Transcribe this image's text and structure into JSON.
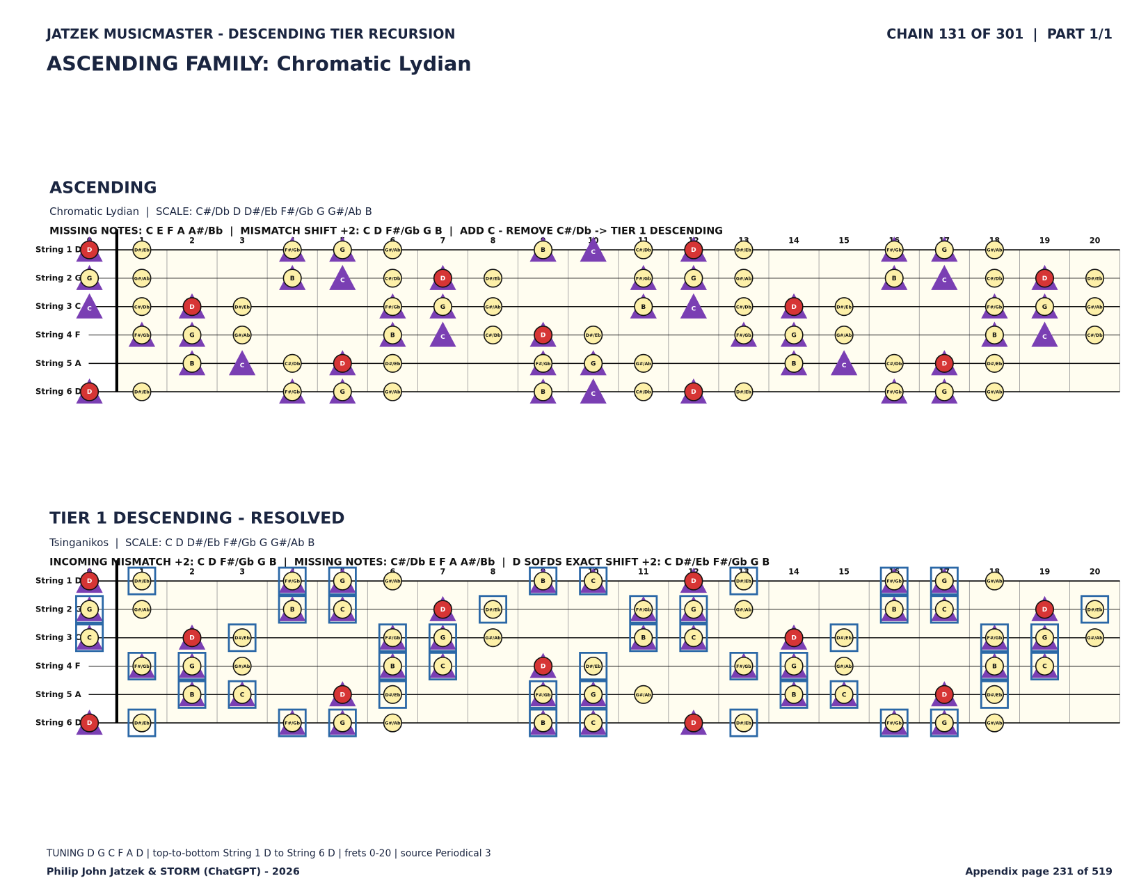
{
  "header": {
    "left": "JATZEK MUSICMASTER - DESCENDING TIER RECURSION",
    "right": "CHAIN 131 OF 301  |  PART 1/1",
    "title": "ASCENDING FAMILY: Chromatic Lydian"
  },
  "colors": {
    "note": "#fdf0a8",
    "highlight_note": "D",
    "highlight": "#d63535",
    "triangle": "#7a3fb3",
    "box": "#2a67a6",
    "board": "#fffdf0"
  },
  "frets": [
    0,
    1,
    2,
    3,
    4,
    5,
    6,
    7,
    8,
    9,
    10,
    11,
    12,
    13,
    14,
    15,
    16,
    17,
    18,
    19,
    20
  ],
  "strings": [
    "String 1 D",
    "String 2 G",
    "String 3 C",
    "String 4 F",
    "String 5 A",
    "String 6 D"
  ],
  "diagrams": [
    {
      "heading": "ASCENDING",
      "subtitle": "Chromatic Lydian  |  SCALE: C#/Db D D#/Eb F#/Gb G G#/Ab B",
      "info": "MISSING NOTES: C E F A A#/Bb  |  MISMATCH SHIFT +2: C D F#/Gb G B  |  ADD C - REMOVE C#/Db -> TIER 1 DESCENDING",
      "notes": [
        [
          [
            0,
            "D",
            "triangle"
          ],
          [
            1,
            "D#/Eb"
          ],
          [
            4,
            "F#/Gb",
            "triangle"
          ],
          [
            5,
            "G",
            "triangle"
          ],
          [
            6,
            "G#/Ab"
          ],
          [
            9,
            "B",
            "triangle"
          ],
          [
            10,
            "C",
            "triangle-only"
          ],
          [
            11,
            "C#/Db"
          ],
          [
            12,
            "D",
            "triangle"
          ],
          [
            13,
            "D#/Eb"
          ],
          [
            16,
            "F#/Gb",
            "triangle"
          ],
          [
            17,
            "G",
            "triangle"
          ],
          [
            18,
            "G#/Ab"
          ]
        ],
        [
          [
            0,
            "G",
            "triangle"
          ],
          [
            1,
            "G#/Ab"
          ],
          [
            4,
            "B",
            "triangle"
          ],
          [
            5,
            "C",
            "triangle-only"
          ],
          [
            6,
            "C#/Db"
          ],
          [
            7,
            "D",
            "triangle"
          ],
          [
            8,
            "D#/Eb"
          ],
          [
            11,
            "F#/Gb",
            "triangle"
          ],
          [
            12,
            "G",
            "triangle"
          ],
          [
            13,
            "G#/Ab"
          ],
          [
            16,
            "B",
            "triangle"
          ],
          [
            17,
            "C",
            "triangle-only"
          ],
          [
            18,
            "C#/Db"
          ],
          [
            19,
            "D",
            "triangle"
          ],
          [
            20,
            "D#/Eb"
          ]
        ],
        [
          [
            0,
            "C",
            "triangle-only"
          ],
          [
            1,
            "C#/Db"
          ],
          [
            2,
            "D",
            "triangle"
          ],
          [
            3,
            "D#/Eb"
          ],
          [
            6,
            "F#/Gb",
            "triangle"
          ],
          [
            7,
            "G",
            "triangle"
          ],
          [
            8,
            "G#/Ab"
          ],
          [
            11,
            "B",
            "triangle"
          ],
          [
            12,
            "C",
            "triangle-only"
          ],
          [
            13,
            "C#/Db"
          ],
          [
            14,
            "D",
            "triangle"
          ],
          [
            15,
            "D#/Eb"
          ],
          [
            18,
            "F#/Gb",
            "triangle"
          ],
          [
            19,
            "G",
            "triangle"
          ],
          [
            20,
            "G#/Ab"
          ]
        ],
        [
          [
            1,
            "F#/Gb",
            "triangle"
          ],
          [
            2,
            "G",
            "triangle"
          ],
          [
            3,
            "G#/Ab"
          ],
          [
            6,
            "B",
            "triangle"
          ],
          [
            7,
            "C",
            "triangle-only"
          ],
          [
            8,
            "C#/Db"
          ],
          [
            9,
            "D",
            "triangle"
          ],
          [
            10,
            "D#/Eb"
          ],
          [
            13,
            "F#/Gb",
            "triangle"
          ],
          [
            14,
            "G",
            "triangle"
          ],
          [
            15,
            "G#/Ab"
          ],
          [
            18,
            "B",
            "triangle"
          ],
          [
            19,
            "C",
            "triangle-only"
          ],
          [
            20,
            "C#/Db"
          ]
        ],
        [
          [
            2,
            "B",
            "triangle"
          ],
          [
            3,
            "C",
            "triangle-only"
          ],
          [
            4,
            "C#/Db"
          ],
          [
            5,
            "D",
            "triangle"
          ],
          [
            6,
            "D#/Eb"
          ],
          [
            9,
            "F#/Gb",
            "triangle"
          ],
          [
            10,
            "G",
            "triangle"
          ],
          [
            11,
            "G#/Ab"
          ],
          [
            14,
            "B",
            "triangle"
          ],
          [
            15,
            "C",
            "triangle-only"
          ],
          [
            16,
            "C#/Db"
          ],
          [
            17,
            "D",
            "triangle"
          ],
          [
            18,
            "D#/Eb"
          ]
        ],
        [
          [
            0,
            "D",
            "triangle"
          ],
          [
            1,
            "D#/Eb"
          ],
          [
            4,
            "F#/Gb",
            "triangle"
          ],
          [
            5,
            "G",
            "triangle"
          ],
          [
            6,
            "G#/Ab"
          ],
          [
            9,
            "B",
            "triangle"
          ],
          [
            10,
            "C",
            "triangle-only"
          ],
          [
            11,
            "C#/Db"
          ],
          [
            12,
            "D",
            "triangle"
          ],
          [
            13,
            "D#/Eb"
          ],
          [
            16,
            "F#/Gb",
            "triangle"
          ],
          [
            17,
            "G",
            "triangle"
          ],
          [
            18,
            "G#/Ab"
          ]
        ]
      ]
    },
    {
      "heading": "TIER 1 DESCENDING - RESOLVED",
      "subtitle": "Tsinganikos  |  SCALE: C D D#/Eb F#/Gb G G#/Ab B",
      "info": "INCOMING MISMATCH +2: C D F#/Gb G B  |  MISSING NOTES: C#/Db E F A A#/Bb  |  D SOFDS EXACT SHIFT +2: C D#/Eb F#/Gb G B",
      "notes": [
        [
          [
            0,
            "D",
            "triangle"
          ],
          [
            1,
            "D#/Eb",
            "box"
          ],
          [
            4,
            "F#/Gb",
            "triangle",
            "box"
          ],
          [
            5,
            "G",
            "triangle",
            "box"
          ],
          [
            6,
            "G#/Ab"
          ],
          [
            9,
            "B",
            "triangle",
            "box"
          ],
          [
            10,
            "C",
            "triangle",
            "box"
          ],
          [
            12,
            "D",
            "triangle"
          ],
          [
            13,
            "D#/Eb",
            "box"
          ],
          [
            16,
            "F#/Gb",
            "triangle",
            "box"
          ],
          [
            17,
            "G",
            "triangle",
            "box"
          ],
          [
            18,
            "G#/Ab"
          ]
        ],
        [
          [
            0,
            "G",
            "triangle",
            "box"
          ],
          [
            1,
            "G#/Ab"
          ],
          [
            4,
            "B",
            "triangle",
            "box"
          ],
          [
            5,
            "C",
            "triangle",
            "box"
          ],
          [
            7,
            "D",
            "triangle"
          ],
          [
            8,
            "D#/Eb",
            "box"
          ],
          [
            11,
            "F#/Gb",
            "triangle",
            "box"
          ],
          [
            12,
            "G",
            "triangle",
            "box"
          ],
          [
            13,
            "G#/Ab"
          ],
          [
            16,
            "B",
            "triangle",
            "box"
          ],
          [
            17,
            "C",
            "triangle",
            "box"
          ],
          [
            19,
            "D",
            "triangle"
          ],
          [
            20,
            "D#/Eb",
            "box"
          ]
        ],
        [
          [
            0,
            "C",
            "triangle",
            "box"
          ],
          [
            2,
            "D",
            "triangle"
          ],
          [
            3,
            "D#/Eb",
            "box"
          ],
          [
            6,
            "F#/Gb",
            "triangle",
            "box"
          ],
          [
            7,
            "G",
            "triangle",
            "box"
          ],
          [
            8,
            "G#/Ab"
          ],
          [
            11,
            "B",
            "triangle",
            "box"
          ],
          [
            12,
            "C",
            "triangle",
            "box"
          ],
          [
            14,
            "D",
            "triangle"
          ],
          [
            15,
            "D#/Eb",
            "box"
          ],
          [
            18,
            "F#/Gb",
            "triangle",
            "box"
          ],
          [
            19,
            "G",
            "triangle",
            "box"
          ],
          [
            20,
            "G#/Ab"
          ]
        ],
        [
          [
            1,
            "F#/Gb",
            "triangle",
            "box"
          ],
          [
            2,
            "G",
            "triangle",
            "box"
          ],
          [
            3,
            "G#/Ab"
          ],
          [
            6,
            "B",
            "triangle",
            "box"
          ],
          [
            7,
            "C",
            "triangle",
            "box"
          ],
          [
            9,
            "D",
            "triangle"
          ],
          [
            10,
            "D#/Eb",
            "box"
          ],
          [
            13,
            "F#/Gb",
            "triangle",
            "box"
          ],
          [
            14,
            "G",
            "triangle",
            "box"
          ],
          [
            15,
            "G#/Ab"
          ],
          [
            18,
            "B",
            "triangle",
            "box"
          ],
          [
            19,
            "C",
            "triangle",
            "box"
          ]
        ],
        [
          [
            2,
            "B",
            "triangle",
            "box"
          ],
          [
            3,
            "C",
            "triangle",
            "box"
          ],
          [
            5,
            "D",
            "triangle"
          ],
          [
            6,
            "D#/Eb",
            "box"
          ],
          [
            9,
            "F#/Gb",
            "triangle",
            "box"
          ],
          [
            10,
            "G",
            "triangle",
            "box"
          ],
          [
            11,
            "G#/Ab"
          ],
          [
            14,
            "B",
            "triangle",
            "box"
          ],
          [
            15,
            "C",
            "triangle",
            "box"
          ],
          [
            17,
            "D",
            "triangle"
          ],
          [
            18,
            "D#/Eb",
            "box"
          ]
        ],
        [
          [
            0,
            "D",
            "triangle"
          ],
          [
            1,
            "D#/Eb",
            "box"
          ],
          [
            4,
            "F#/Gb",
            "triangle",
            "box"
          ],
          [
            5,
            "G",
            "triangle",
            "box"
          ],
          [
            6,
            "G#/Ab"
          ],
          [
            9,
            "B",
            "triangle",
            "box"
          ],
          [
            10,
            "C",
            "triangle",
            "box"
          ],
          [
            12,
            "D",
            "triangle"
          ],
          [
            13,
            "D#/Eb",
            "box"
          ],
          [
            16,
            "F#/Gb",
            "triangle",
            "box"
          ],
          [
            17,
            "G",
            "triangle",
            "box"
          ],
          [
            18,
            "G#/Ab"
          ]
        ]
      ]
    }
  ],
  "footer": {
    "tuning": "TUNING D G C F A D | top-to-bottom String 1 D to String 6 D | frets 0-20 | source Periodical 3",
    "author": "Philip John Jatzek & STORM (ChatGPT) - 2026",
    "page": "Appendix page 231 of 519"
  }
}
